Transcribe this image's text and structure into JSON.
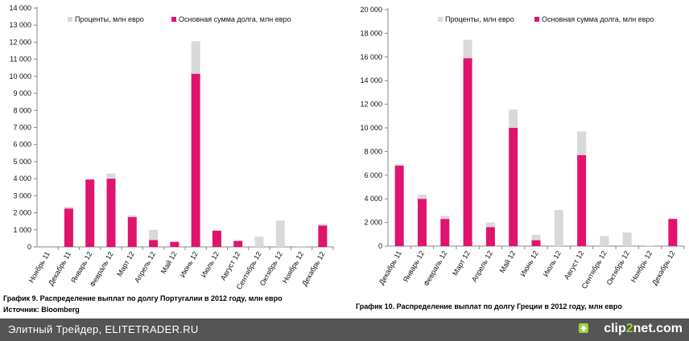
{
  "chart_data": [
    {
      "type": "bar",
      "stacked": true,
      "title": "График 9. Распределение выплат по долгу Португалии в 2012 году, млн евро",
      "source": "Источник: Bloomberg",
      "categories": [
        "Ноябрь 11",
        "Декабрь 11",
        "Январь 12",
        "Февраль 12",
        "Март 12",
        "Апрель 12",
        "Май 12",
        "Июнь 12",
        "Июль 12",
        "Август 12",
        "Сентябрь 12",
        "Октябрь 12",
        "Ноябрь 12",
        "Декабрь 12"
      ],
      "series": [
        {
          "name": "Основная сумма долга, млн евро",
          "color": "#e0136f",
          "values": [
            0,
            2250,
            3950,
            4000,
            1750,
            400,
            300,
            10150,
            950,
            350,
            0,
            0,
            0,
            1250
          ]
        },
        {
          "name": "Проценты, млн евро",
          "color": "#d9d9d9",
          "values": [
            0,
            100,
            0,
            300,
            100,
            600,
            0,
            1900,
            50,
            0,
            600,
            1550,
            50,
            100
          ]
        }
      ],
      "ylim": [
        0,
        14000
      ],
      "ytick_step": 1000,
      "ytick_labels": [
        "0",
        "1 000",
        "2 000",
        "3 000",
        "4 000",
        "5 000",
        "6 000",
        "7 000",
        "8 000",
        "9 000",
        "10 000",
        "11 000",
        "12 000",
        "13 000",
        "14 000"
      ],
      "legend_position": "top",
      "grid": false
    },
    {
      "type": "bar",
      "stacked": true,
      "title": "График 10. Распределение выплат по долгу Греции в 2012 году, млн евро",
      "categories": [
        "Декабрь 11",
        "Январь 12",
        "Февраль 12",
        "Март 12",
        "Апрель 12",
        "Май 12",
        "Июнь 12",
        "Июль 12",
        "Август 12",
        "Сентябрь 12",
        "Октябрь 12",
        "Ноябрь 12",
        "Декабрь 12"
      ],
      "series": [
        {
          "name": "Основная сумма долга, млн евро",
          "color": "#e0136f",
          "values": [
            6800,
            4000,
            2300,
            15900,
            1600,
            10000,
            500,
            0,
            7700,
            0,
            0,
            0,
            2300
          ]
        },
        {
          "name": "Проценты, млн евро",
          "color": "#d9d9d9",
          "values": [
            150,
            350,
            250,
            1550,
            400,
            1550,
            450,
            3050,
            2000,
            850,
            1150,
            50,
            0
          ]
        }
      ],
      "ylim": [
        0,
        20000
      ],
      "ytick_step": 2000,
      "ytick_labels": [
        "0",
        "2 000",
        "4 000",
        "6 000",
        "8 000",
        "10 000",
        "12 000",
        "14 000",
        "16 000",
        "18 000",
        "20 000"
      ],
      "legend_position": "top",
      "grid": false
    }
  ],
  "footer": {
    "site_text": "Элитный Трейдер, ELITETRADER.RU",
    "brand_a": "clip",
    "brand_b": "2",
    "brand_c": "net.com"
  },
  "colors": {
    "principal": "#e0136f",
    "interest": "#d9d9d9",
    "footer_bg": "#555555"
  }
}
